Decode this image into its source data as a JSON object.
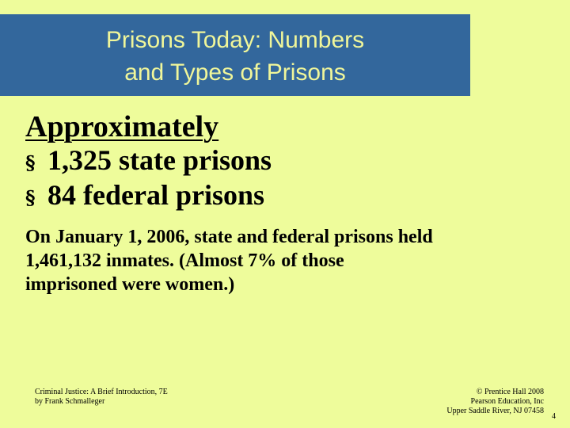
{
  "colors": {
    "background": "#eefc9b",
    "title_bar": "#33679c",
    "title_text": "#f0f69a"
  },
  "title": {
    "line1": "Prisons Today: Numbers",
    "line2": "and Types of Prisons"
  },
  "heading": "Approximately",
  "bullets": [
    {
      "icon": "section-sign-bullet",
      "text": "1,325 state prisons"
    },
    {
      "icon": "section-sign-bullet",
      "text": "84 federal prisons"
    }
  ],
  "paragraph": {
    "line1": "On January 1, 2006, state and federal prisons held",
    "line2": "1,461,132 inmates.  (Almost 7% of those",
    "line3": "imprisoned were women.)"
  },
  "footer": {
    "left_line1": "Criminal Justice: A Brief Introduction, 7E",
    "left_line2": "by Frank Schmalleger",
    "right_line1": "© Prentice Hall 2008",
    "right_line2": "Pearson Education, Inc",
    "right_line3": "Upper Saddle River, NJ 07458"
  },
  "page_number": "4"
}
